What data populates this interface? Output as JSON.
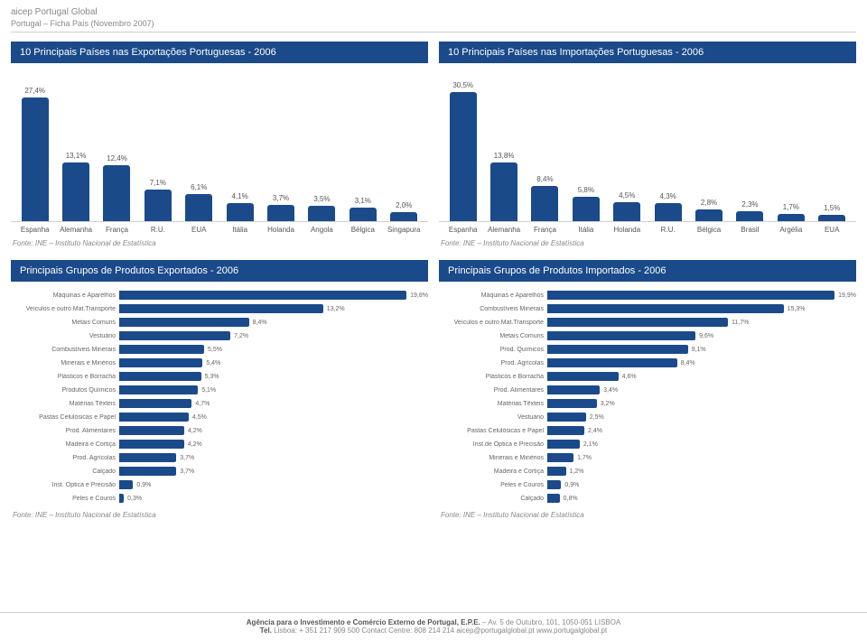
{
  "header": {
    "title": "aicep Portugal Global",
    "subtitle": "Portugal – Ficha País (Novembro 2007)"
  },
  "charts": {
    "export_countries": {
      "title": "10 Principais Países nas Exportações Portuguesas - 2006",
      "type": "bar",
      "bar_color": "#1a4a8a",
      "max_value": 30,
      "categories": [
        "Espanha",
        "Alemanha",
        "França",
        "R.U.",
        "EUA",
        "Itália",
        "Holanda",
        "Angola",
        "Bélgica",
        "Singapura"
      ],
      "values": [
        27.4,
        13.1,
        12.4,
        7.1,
        6.1,
        4.1,
        3.7,
        3.5,
        3.1,
        2.0
      ],
      "value_fmt": [
        "27,4%",
        "13,1%",
        "12,4%",
        "7,1%",
        "6,1%",
        "4,1%",
        "3,7%",
        "3,5%",
        "3,1%",
        "2,0%"
      ],
      "source": "Fonte: INE – Instituto Nacional de Estatística"
    },
    "import_countries": {
      "title": "10 Principais Países nas Importações Portuguesas - 2006",
      "type": "bar",
      "bar_color": "#1a4a8a",
      "max_value": 32,
      "categories": [
        "Espanha",
        "Alemanha",
        "França",
        "Itália",
        "Holanda",
        "R.U.",
        "Bélgica",
        "Brasil",
        "Argélia",
        "EUA"
      ],
      "values": [
        30.5,
        13.8,
        8.4,
        5.8,
        4.5,
        4.3,
        2.8,
        2.3,
        1.7,
        1.5
      ],
      "value_fmt": [
        "30,5%",
        "13,8%",
        "8,4%",
        "5,8%",
        "4,5%",
        "4,3%",
        "2,8%",
        "2,3%",
        "1,7%",
        "1,5%"
      ],
      "source": "Fonte: INE – Instituto Nacional de Estatística"
    },
    "export_products": {
      "title": "Principais Grupos de Produtos Exportados - 2006",
      "type": "hbar",
      "bar_color": "#1a4a8a",
      "max_value": 20,
      "categories": [
        "Máquinas e Aparelhos",
        "Veículos e outro Mat.Transporte",
        "Metais Comuns",
        "Vestuário",
        "Combustíveis Minerais",
        "Minerais e Minérios",
        "Plásticos e Borracha",
        "Produtos Químicos",
        "Matérias Têxteis",
        "Pastas Celulósicas e Papel",
        "Prod. Alimentares",
        "Madeira e Cortiça",
        "Prod. Agrícolas",
        "Calçado",
        "Inst. Óptica e Precisão",
        "Peles e Couros"
      ],
      "values": [
        19.8,
        13.2,
        8.4,
        7.2,
        5.5,
        5.4,
        5.3,
        5.1,
        4.7,
        4.5,
        4.2,
        4.2,
        3.7,
        3.7,
        0.9,
        0.3
      ],
      "value_fmt": [
        "19,8%",
        "13,2%",
        "8,4%",
        "7,2%",
        "5,5%",
        "5,4%",
        "5,3%",
        "5,1%",
        "4,7%",
        "4,5%",
        "4,2%",
        "4,2%",
        "3,7%",
        "3,7%",
        "0,9%",
        "0,3%"
      ],
      "source": "Fonte: INE – Instituto Nacional de Estatística"
    },
    "import_products": {
      "title": "Principais Grupos de Produtos Importados - 2006",
      "type": "hbar",
      "bar_color": "#1a4a8a",
      "max_value": 20,
      "categories": [
        "Máquinas e Aparelhos",
        "Combustíveis Minerais",
        "Veículos e outro Mat.Transporte",
        "Metais Comuns",
        "Prod. Químicos",
        "Prod. Agrícolas",
        "Plásticos e Borracha",
        "Prod. Alimentares",
        "Matérias Têxteis",
        "Vestuário",
        "Pastas Celulósicas e Papel",
        "Inst.de Óptica e Precisão",
        "Minerais e Minérios",
        "Madeira e Cortiça",
        "Peles e Couros",
        "Calçado"
      ],
      "values": [
        19.9,
        15.3,
        11.7,
        9.6,
        9.1,
        8.4,
        4.6,
        3.4,
        3.2,
        2.5,
        2.4,
        2.1,
        1.7,
        1.2,
        0.9,
        0.8
      ],
      "value_fmt": [
        "19,9%",
        "15,3%",
        "11,7%",
        "9,6%",
        "9,1%",
        "8,4%",
        "4,6%",
        "3,4%",
        "3,2%",
        "2,5%",
        "2,4%",
        "2,1%",
        "1,7%",
        "1,2%",
        "0,9%",
        "0,8%"
      ],
      "source": "Fonte: INE – Instituto Nacional de Estatística"
    }
  },
  "footer": {
    "line1_bold": "Agência para o Investimento e Comércio Externo de Portugal, E.P.E.",
    "line1_rest": " – Av. 5 de Outubro, 101, 1050-051 LISBOA",
    "line2_bold": "Tel.",
    "line2_rest": " Lisboa: + 351 217 909 500  Contact Centre: 808 214 214  aicep@portugalglobal.pt  www.portugalglobal.pt"
  }
}
